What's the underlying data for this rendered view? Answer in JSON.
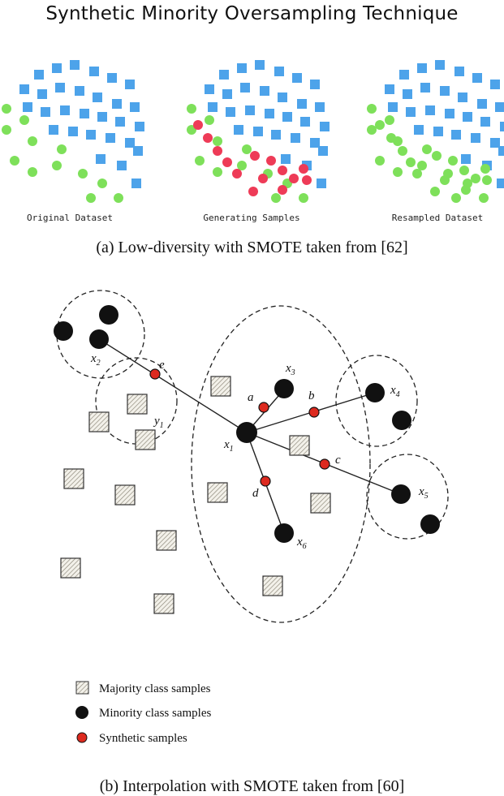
{
  "top_figure": {
    "title": "Synthetic Minority Oversampling Technique",
    "panels": [
      {
        "label": "Original Dataset"
      },
      {
        "label": "Generating Samples"
      },
      {
        "label": "Resampled Dataset"
      }
    ],
    "caption": "(a)  Low-diversity with SMOTE taken from [62]"
  },
  "bottom_figure": {
    "labels": {
      "x1": "x",
      "x1_sub": "1",
      "x2": "x",
      "x2_sub": "2",
      "x3": "x",
      "x3_sub": "3",
      "x4": "x",
      "x4_sub": "4",
      "x5": "x",
      "x5_sub": "5",
      "x6": "x",
      "x6_sub": "6",
      "y1": "y",
      "y1_sub": "1",
      "a": "a",
      "b": "b",
      "c": "c",
      "d": "d",
      "e": "e"
    },
    "legend": {
      "majority": "Majority class samples",
      "minority": "Minority class samples",
      "synthetic": "Synthetic samples"
    },
    "caption": "(b)  Interpolation with SMOTE taken from [60]"
  },
  "colors": {
    "majority_square": "#4da3ea",
    "minority_dot": "#7ee05a",
    "synthetic_dot": "#ee3b57",
    "synthetic_small": "#dd2a1f"
  }
}
